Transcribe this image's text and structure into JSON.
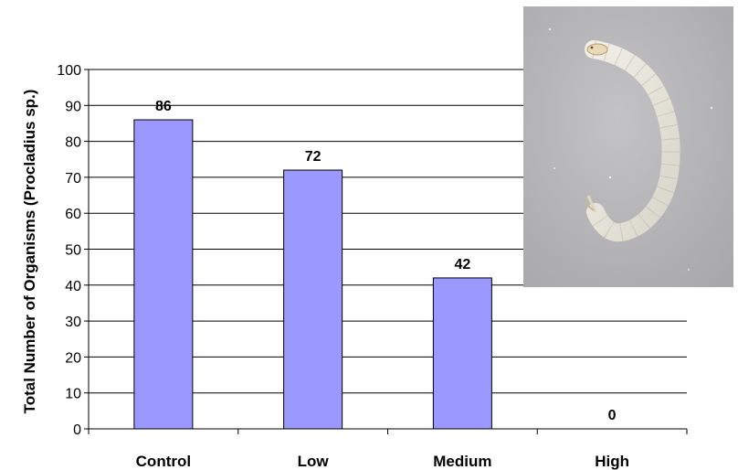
{
  "chart_data": {
    "type": "bar",
    "title": "",
    "xlabel": "",
    "ylabel": "Total Number of Organisms (Procladius sp.)",
    "categories": [
      "Control",
      "Low",
      "Medium",
      "High"
    ],
    "values": [
      86,
      72,
      42,
      0
    ],
    "data_labels": [
      "86",
      "72",
      "42",
      "0"
    ],
    "ylim": [
      0,
      100
    ],
    "yticks": [
      0,
      10,
      20,
      30,
      40,
      50,
      60,
      70,
      80,
      90,
      100
    ],
    "ytick_labels": [
      "0",
      "10",
      "20",
      "30",
      "40",
      "50",
      "60",
      "70",
      "80",
      "90",
      "100"
    ],
    "grid": true,
    "legend": "none",
    "bar_color": "#9999ff",
    "bar_edge_color": "#000000"
  },
  "inset_photo": {
    "subject": "larva-photo",
    "background_color": "#b4b4b6",
    "larva_color": "#e4e2d6"
  }
}
